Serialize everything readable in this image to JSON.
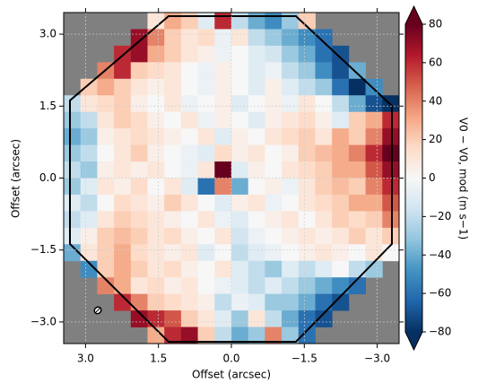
{
  "chart_data": {
    "type": "heatmap",
    "xlabel": "Offset (arcsec)",
    "ylabel": "Offset (arcsec)",
    "colorbar_label": "V0 − V0, mod (m s−1)",
    "xlim": [
      3.45,
      -3.45
    ],
    "ylim": [
      -3.45,
      3.45
    ],
    "xticks": [
      {
        "value": 3.0,
        "label": "3.0"
      },
      {
        "value": 1.5,
        "label": "1.5"
      },
      {
        "value": 0.0,
        "label": "0.0"
      },
      {
        "value": -1.5,
        "label": "−1.5"
      },
      {
        "value": -3.0,
        "label": "−3.0"
      }
    ],
    "yticks": [
      {
        "value": 3.0,
        "label": "3.0"
      },
      {
        "value": 1.5,
        "label": "1.5"
      },
      {
        "value": 0.0,
        "label": "0.0"
      },
      {
        "value": -1.5,
        "label": "−1.5"
      },
      {
        "value": -3.0,
        "label": "−3.0"
      }
    ],
    "clim": [
      -80,
      80
    ],
    "cticks": [
      80,
      60,
      40,
      20,
      0,
      {
        "value": -20,
        "label": "−20"
      },
      {
        "value": -40,
        "label": "−40"
      },
      {
        "value": -60,
        "label": "−60"
      },
      {
        "value": -80,
        "label": "−80"
      }
    ],
    "colormap": [
      "#053061",
      "#2166ac",
      "#4393c3",
      "#92c5de",
      "#d1e5f0",
      "#f7f7f7",
      "#fddbc7",
      "#f4a582",
      "#d6604d",
      "#b2182b",
      "#67001f"
    ],
    "mask_color": "#808080",
    "grid": true,
    "z": [
      [
        null,
        null,
        null,
        null,
        null,
        10,
        30,
        20,
        -10,
        60,
        -20,
        -40,
        -50,
        -30,
        20,
        null,
        null,
        null,
        null,
        null
      ],
      [
        null,
        null,
        null,
        null,
        70,
        40,
        20,
        10,
        15,
        -5,
        10,
        -20,
        -30,
        -40,
        -50,
        -60,
        null,
        null,
        null,
        null
      ],
      [
        null,
        null,
        null,
        60,
        70,
        30,
        20,
        10,
        5,
        -5,
        0,
        -10,
        -15,
        -30,
        -40,
        -60,
        -70,
        null,
        null,
        null
      ],
      [
        null,
        null,
        40,
        60,
        20,
        15,
        10,
        0,
        -5,
        5,
        0,
        -10,
        -5,
        -20,
        -30,
        -50,
        -70,
        -40,
        null,
        null
      ],
      [
        null,
        20,
        30,
        20,
        10,
        5,
        10,
        0,
        -5,
        5,
        0,
        -10,
        5,
        -10,
        -20,
        -30,
        -60,
        -80,
        -50,
        null
      ],
      [
        -20,
        10,
        15,
        20,
        5,
        0,
        10,
        -5,
        0,
        5,
        -10,
        0,
        5,
        -5,
        10,
        0,
        -20,
        -40,
        -70,
        -80
      ],
      [
        -30,
        -20,
        10,
        20,
        15,
        5,
        0,
        10,
        -5,
        5,
        0,
        -10,
        5,
        10,
        15,
        5,
        -10,
        20,
        30,
        60
      ],
      [
        -40,
        -30,
        5,
        10,
        15,
        10,
        5,
        0,
        10,
        -10,
        5,
        0,
        10,
        15,
        20,
        10,
        30,
        20,
        40,
        70
      ],
      [
        -30,
        -20,
        0,
        10,
        20,
        5,
        0,
        -5,
        -10,
        15,
        5,
        10,
        0,
        5,
        20,
        25,
        30,
        40,
        60,
        80
      ],
      [
        -20,
        -30,
        5,
        10,
        5,
        10,
        0,
        -5,
        10,
        80,
        -10,
        5,
        0,
        10,
        15,
        20,
        30,
        30,
        50,
        70
      ],
      [
        -30,
        -10,
        10,
        5,
        15,
        0,
        10,
        -10,
        -60,
        40,
        -40,
        0,
        5,
        -5,
        10,
        20,
        25,
        20,
        40,
        60
      ],
      [
        -10,
        -20,
        0,
        15,
        10,
        5,
        20,
        10,
        0,
        -10,
        5,
        10,
        -5,
        0,
        10,
        15,
        20,
        30,
        30,
        50
      ],
      [
        -20,
        -10,
        10,
        20,
        15,
        10,
        5,
        0,
        10,
        -5,
        -10,
        0,
        5,
        10,
        0,
        10,
        20,
        15,
        20,
        40
      ],
      [
        -10,
        5,
        20,
        25,
        20,
        10,
        15,
        5,
        0,
        10,
        -15,
        -5,
        0,
        5,
        10,
        5,
        10,
        20,
        10,
        20
      ],
      [
        -40,
        10,
        20,
        30,
        15,
        10,
        5,
        10,
        -10,
        0,
        -20,
        -10,
        -5,
        0,
        5,
        10,
        5,
        0,
        10,
        0
      ],
      [
        null,
        -50,
        20,
        30,
        20,
        10,
        15,
        5,
        0,
        10,
        -10,
        -20,
        -30,
        -10,
        -20,
        -10,
        0,
        -20,
        -30,
        null
      ],
      [
        null,
        null,
        40,
        30,
        10,
        15,
        5,
        10,
        0,
        -5,
        -10,
        -20,
        -10,
        -20,
        -30,
        -40,
        -50,
        -60,
        null,
        null
      ],
      [
        null,
        null,
        null,
        60,
        40,
        20,
        15,
        10,
        5,
        -20,
        -5,
        -10,
        -30,
        -30,
        -40,
        -60,
        -70,
        null,
        null,
        null
      ],
      [
        null,
        null,
        null,
        null,
        70,
        60,
        50,
        20,
        10,
        -10,
        -30,
        10,
        -20,
        -40,
        -60,
        -70,
        null,
        null,
        null,
        null
      ],
      [
        null,
        null,
        null,
        null,
        null,
        30,
        60,
        70,
        20,
        -20,
        -40,
        -30,
        40,
        -30,
        -60,
        null,
        null,
        null,
        null,
        null
      ]
    ]
  }
}
